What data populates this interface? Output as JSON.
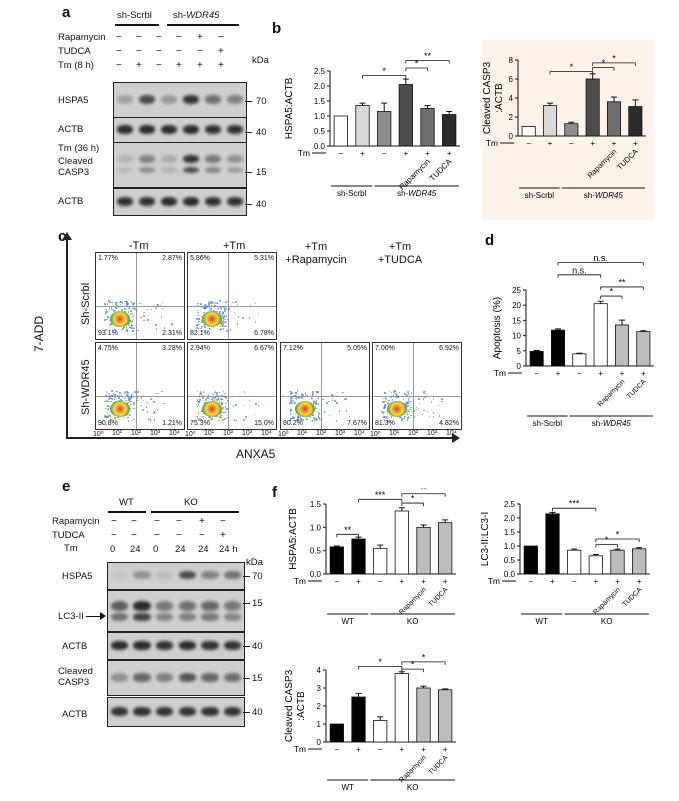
{
  "panels": {
    "a": "a",
    "b": "b",
    "c": "c",
    "d": "d",
    "e": "e",
    "f": "f"
  },
  "panel_a": {
    "group_shscrbl": "sh-Scrbl",
    "group_shwdr45": "sh-",
    "group_shwdr45_italic": "WDR45",
    "rows": [
      "Rapamycin",
      "TUDCA",
      "Tm (8 h)"
    ],
    "signs": [
      [
        "−",
        "−",
        "−",
        "−",
        "+",
        "−"
      ],
      [
        "−",
        "−",
        "−",
        "−",
        "−",
        "+"
      ],
      [
        "−",
        "+",
        "−",
        "+",
        "+",
        "+"
      ]
    ],
    "kda": "kDa",
    "blots": [
      {
        "name": "HSPA5",
        "marker": "70"
      },
      {
        "name": "ACTB",
        "marker": "40"
      },
      {
        "name": "Tm (36 h)\nCleaved\nCASP3",
        "marker": "15"
      },
      {
        "name": "ACTB",
        "marker": "40"
      }
    ],
    "tm36": "Tm (36 h)",
    "cleaved": "Cleaved",
    "casp3": "CASP3"
  },
  "panel_e": {
    "group_wt": "WT",
    "group_ko": "KO",
    "rows": [
      "Rapamycin",
      "TUDCA"
    ],
    "signs": [
      [
        "−",
        "−",
        "−",
        "−",
        "+",
        "−"
      ],
      [
        "−",
        "−",
        "−",
        "−",
        "−",
        "+"
      ]
    ],
    "tm_label": "Tm",
    "tm_values": [
      "0",
      "24",
      "0",
      "24",
      "24",
      "24 h"
    ],
    "kda": "kDa",
    "blots": [
      {
        "name": "HSPA5",
        "marker": "70"
      },
      {
        "name": "LC3-II",
        "marker": "15"
      },
      {
        "name": "ACTB",
        "marker": "40"
      },
      {
        "name": "Cleaved\nCASP3",
        "marker": "15"
      },
      {
        "name": "ACTB",
        "marker": "40"
      }
    ],
    "cleaved": "Cleaved",
    "casp3": "CASP3"
  },
  "panel_c": {
    "y_title": "7-ADD",
    "x_title": "ANXA5",
    "col_titles": [
      "-Tm",
      "+Tm",
      "+Tm\n+Rapamycin",
      "+Tm\n+TUDCA"
    ],
    "row_titles": [
      "Sh-Scrbl",
      "Sh-WDR45"
    ],
    "plots": [
      {
        "ul": "1.77%",
        "ur": "2.87%",
        "ll": "93.1%",
        "lr": "2.31%"
      },
      {
        "ul": "5.86%",
        "ur": "5.31%",
        "ll": "82.1%",
        "lr": "6.78%"
      },
      {
        "ul": "4.75%",
        "ur": "3.28%",
        "ll": "90.8%",
        "lr": "1.21%"
      },
      {
        "ul": "2.94%",
        "ur": "6.67%",
        "ll": "75.3%",
        "lr": "15.0%"
      },
      {
        "ul": "7.12%",
        "ur": "5.05%",
        "ll": "80.2%",
        "lr": "7.67%"
      },
      {
        "ul": "7.00%",
        "ur": "6.92%",
        "ll": "81.3%",
        "lr": "4.82%"
      }
    ],
    "axis_ticks": [
      "10⁰",
      "10¹",
      "10²",
      "10³",
      "10⁴"
    ]
  },
  "chart_data": [
    {
      "id": "b1",
      "type": "bar",
      "ylabel": "HSPA5:ACTB",
      "ylim": [
        0,
        2.5
      ],
      "yticks": [
        "0.0",
        "0.5",
        "1.0",
        "1.5",
        "2.0",
        "2.5"
      ],
      "categories": [
        "1",
        "2",
        "3",
        "4",
        "5",
        "6"
      ],
      "values": [
        1.0,
        1.35,
        1.15,
        2.05,
        1.25,
        1.05
      ],
      "errors": [
        0,
        0.08,
        0.28,
        0.18,
        0.1,
        0.1
      ],
      "fills": [
        "#ffffff",
        "#d9d9d9",
        "#8c8c8c",
        "#4d4d4d",
        "#6e6e6e",
        "#2b2b2b"
      ],
      "tm": [
        "−",
        "+",
        "−",
        "+",
        "+",
        "+"
      ],
      "group_labels": [
        "sh-Scrbl",
        "sh-WDR45"
      ],
      "x_labels": [
        "Rapamycin",
        "TUDCA"
      ],
      "sig": [
        "*",
        "*",
        "**"
      ]
    },
    {
      "id": "b2",
      "type": "bar",
      "ylabel": "Cleaved CASP3\n:ACTB",
      "ylim": [
        0,
        8
      ],
      "yticks": [
        "0",
        "2",
        "4",
        "6",
        "8"
      ],
      "categories": [
        "1",
        "2",
        "3",
        "4",
        "5",
        "6"
      ],
      "values": [
        1.0,
        3.2,
        1.3,
        6.0,
        3.6,
        3.1
      ],
      "errors": [
        0,
        0.25,
        0.15,
        0.55,
        0.5,
        0.7
      ],
      "fills": [
        "#ffffff",
        "#d9d9d9",
        "#8c8c8c",
        "#4d4d4d",
        "#6e6e6e",
        "#2b2b2b"
      ],
      "tm": [
        "−",
        "+",
        "−",
        "+",
        "+",
        "+"
      ],
      "group_labels": [
        "sh-Scrbl",
        "sh-WDR45"
      ],
      "x_labels": [
        "Rapamycin",
        "TUDCA"
      ],
      "sig": [
        "*",
        "*",
        "*"
      ]
    },
    {
      "id": "d",
      "type": "bar",
      "ylabel": "Apoptosis (%)",
      "ylim": [
        0,
        25
      ],
      "yticks": [
        "0",
        "5",
        "10",
        "15",
        "20",
        "25"
      ],
      "categories": [
        "1",
        "2",
        "3",
        "4",
        "5",
        "6"
      ],
      "values": [
        4.8,
        11.8,
        4.0,
        20.5,
        13.5,
        11.3
      ],
      "errors": [
        0.3,
        0.4,
        0.2,
        0.8,
        1.6,
        0.3
      ],
      "fills": [
        "#000000",
        "#000000",
        "#ffffff",
        "#ffffff",
        "#bdbdbd",
        "#bdbdbd"
      ],
      "tm": [
        "−",
        "+",
        "−",
        "+",
        "+",
        "+"
      ],
      "group_labels": [
        "sh-Scrbl",
        "sh-WDR45"
      ],
      "x_labels": [
        "Rapamycin",
        "TUDCA"
      ],
      "sig": [
        "n.s.",
        "n.s.",
        "**",
        "*"
      ]
    },
    {
      "id": "f1",
      "type": "bar",
      "ylabel": "HSPA5:ACTB",
      "ylim": [
        0,
        1.5
      ],
      "yticks": [
        "0.0",
        "0.5",
        "1.0",
        "1.5"
      ],
      "categories": [
        "1",
        "2",
        "3",
        "4",
        "5",
        "6"
      ],
      "values": [
        0.58,
        0.75,
        0.55,
        1.35,
        1.0,
        1.1
      ],
      "errors": [
        0.02,
        0.04,
        0.07,
        0.07,
        0.05,
        0.06
      ],
      "fills": [
        "#000000",
        "#000000",
        "#ffffff",
        "#ffffff",
        "#bdbdbd",
        "#bdbdbd"
      ],
      "tm": [
        "−",
        "+",
        "−",
        "+",
        "+",
        "+"
      ],
      "group_labels": [
        "WT",
        "KO"
      ],
      "x_labels": [
        "Rapamycin",
        "TUDCA"
      ],
      "sig": [
        "**",
        "***",
        "*",
        "**"
      ]
    },
    {
      "id": "f2",
      "type": "bar",
      "ylabel": "LC3-II:LC3-I",
      "ylim": [
        0,
        2.5
      ],
      "yticks": [
        "0.0",
        "0.5",
        "1.0",
        "1.5",
        "2.0",
        "2.5"
      ],
      "categories": [
        "1",
        "2",
        "3",
        "4",
        "5",
        "6"
      ],
      "values": [
        1.0,
        2.15,
        0.85,
        0.65,
        0.85,
        0.9
      ],
      "errors": [
        0,
        0.05,
        0.04,
        0.05,
        0.04,
        0.04
      ],
      "fills": [
        "#000000",
        "#000000",
        "#ffffff",
        "#ffffff",
        "#bdbdbd",
        "#bdbdbd"
      ],
      "tm": [
        "−",
        "+",
        "−",
        "+",
        "+",
        "+"
      ],
      "group_labels": [
        "WT",
        "KO"
      ],
      "x_labels": [
        "Rapamycin",
        "TUDCA"
      ],
      "sig": [
        "***",
        "*",
        "*"
      ]
    },
    {
      "id": "f3",
      "type": "bar",
      "ylabel": "Cleaved CASP3\n:ACTB",
      "ylim": [
        0,
        4
      ],
      "yticks": [
        "0",
        "1",
        "2",
        "3",
        "4"
      ],
      "categories": [
        "1",
        "2",
        "3",
        "4",
        "5",
        "6"
      ],
      "values": [
        1.0,
        2.5,
        1.2,
        3.8,
        3.0,
        2.9
      ],
      "errors": [
        0,
        0.2,
        0.2,
        0.1,
        0.1,
        0.05
      ],
      "fills": [
        "#000000",
        "#000000",
        "#ffffff",
        "#ffffff",
        "#bdbdbd",
        "#bdbdbd"
      ],
      "tm": [
        "−",
        "+",
        "−",
        "+",
        "+",
        "+"
      ],
      "group_labels": [
        "WT",
        "KO"
      ],
      "x_labels": [
        "Rapamycin",
        "TUDCA"
      ],
      "sig": [
        "*",
        "*",
        "*"
      ]
    }
  ],
  "common": {
    "tm": "Tm"
  }
}
